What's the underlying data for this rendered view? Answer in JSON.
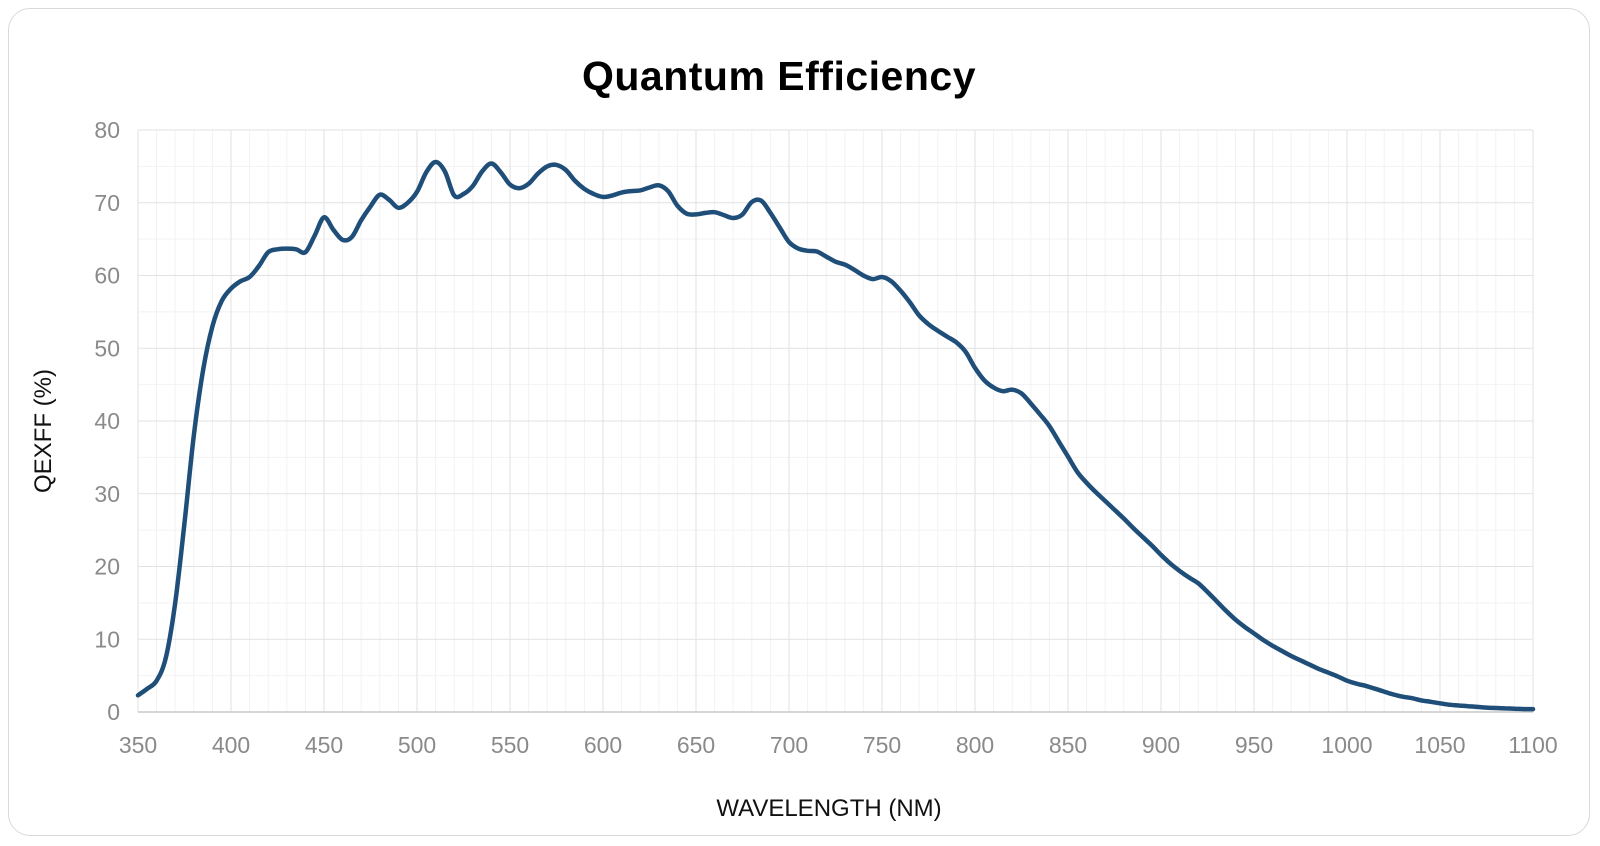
{
  "card": {
    "background": "#ffffff",
    "border_color": "#d9d9d9"
  },
  "chart_data": {
    "type": "line",
    "title": "Quantum Efficiency",
    "xlabel": "WAVELENGTH (NM)",
    "ylabel": "QEXFF (%)",
    "xlim": [
      350,
      1100
    ],
    "ylim": [
      0,
      80
    ],
    "x_major_ticks": [
      350,
      400,
      450,
      500,
      550,
      600,
      650,
      700,
      750,
      800,
      850,
      900,
      950,
      1000,
      1050,
      1100
    ],
    "y_major_ticks": [
      0,
      10,
      20,
      30,
      40,
      50,
      60,
      70,
      80
    ],
    "x_minor_step": 10,
    "y_minor_step": 5,
    "grid": {
      "major_color": "#e2e2e2",
      "minor_color": "#f2f2f2",
      "axis_color": "#c9c9c9",
      "on": true
    },
    "tick_label_color": "#8a8a8a",
    "title_color": "#000000",
    "legend_position": "none",
    "markers": false,
    "series": [
      {
        "color": "#1f4e79",
        "line_width": 4.5,
        "x": [
          350,
          355,
          360,
          365,
          370,
          375,
          380,
          385,
          390,
          395,
          400,
          405,
          410,
          415,
          420,
          425,
          430,
          435,
          440,
          445,
          450,
          455,
          460,
          465,
          470,
          475,
          480,
          485,
          490,
          495,
          500,
          505,
          510,
          515,
          520,
          525,
          530,
          535,
          540,
          545,
          550,
          555,
          560,
          565,
          570,
          575,
          580,
          585,
          590,
          595,
          600,
          605,
          610,
          615,
          620,
          625,
          630,
          635,
          640,
          645,
          650,
          655,
          660,
          665,
          670,
          675,
          680,
          685,
          690,
          695,
          700,
          705,
          710,
          715,
          720,
          725,
          730,
          735,
          740,
          745,
          750,
          755,
          760,
          765,
          770,
          775,
          780,
          785,
          790,
          795,
          800,
          805,
          810,
          815,
          820,
          825,
          830,
          835,
          840,
          845,
          850,
          855,
          860,
          865,
          870,
          875,
          880,
          885,
          890,
          895,
          900,
          905,
          910,
          915,
          920,
          925,
          930,
          935,
          940,
          945,
          950,
          955,
          960,
          965,
          970,
          975,
          980,
          985,
          990,
          995,
          1000,
          1005,
          1010,
          1015,
          1020,
          1025,
          1030,
          1035,
          1040,
          1045,
          1050,
          1055,
          1060,
          1065,
          1070,
          1075,
          1080,
          1085,
          1090,
          1095,
          1100
        ],
        "y": [
          2.3,
          3.2,
          4.3,
          7.5,
          15,
          26,
          38,
          47,
          53,
          56.5,
          58.2,
          59.2,
          59.8,
          61.3,
          63.2,
          63.6,
          63.7,
          63.6,
          63.2,
          65.5,
          68,
          66.3,
          64.9,
          65.3,
          67.6,
          69.5,
          71.1,
          70.4,
          69.3,
          70,
          71.5,
          74.2,
          75.6,
          74.3,
          71,
          71.2,
          72.3,
          74.3,
          75.4,
          74.2,
          72.5,
          72,
          72.6,
          74,
          75,
          75.2,
          74.5,
          73,
          71.9,
          71.2,
          70.8,
          71,
          71.4,
          71.6,
          71.7,
          72.1,
          72.4,
          71.6,
          69.6,
          68.5,
          68.4,
          68.6,
          68.7,
          68.3,
          67.9,
          68.4,
          70.1,
          70.3,
          68.6,
          66.6,
          64.6,
          63.7,
          63.4,
          63.3,
          62.6,
          61.9,
          61.5,
          60.8,
          60,
          59.5,
          59.8,
          59.2,
          57.9,
          56.3,
          54.5,
          53.3,
          52.4,
          51.6,
          50.8,
          49.5,
          47.3,
          45.6,
          44.6,
          44.1,
          44.3,
          43.8,
          42.4,
          40.9,
          39.3,
          37.2,
          35.1,
          33,
          31.5,
          30.2,
          29,
          27.8,
          26.6,
          25.3,
          24.1,
          22.9,
          21.6,
          20.4,
          19.4,
          18.5,
          17.7,
          16.5,
          15.2,
          13.9,
          12.7,
          11.7,
          10.8,
          9.9,
          9.1,
          8.4,
          7.7,
          7.1,
          6.5,
          5.9,
          5.4,
          4.9,
          4.3,
          3.9,
          3.6,
          3.2,
          2.8,
          2.4,
          2.1,
          1.9,
          1.6,
          1.4,
          1.2,
          1,
          0.9,
          0.8,
          0.7,
          0.6,
          0.55,
          0.5,
          0.45,
          0.4,
          0.4
        ]
      }
    ]
  }
}
